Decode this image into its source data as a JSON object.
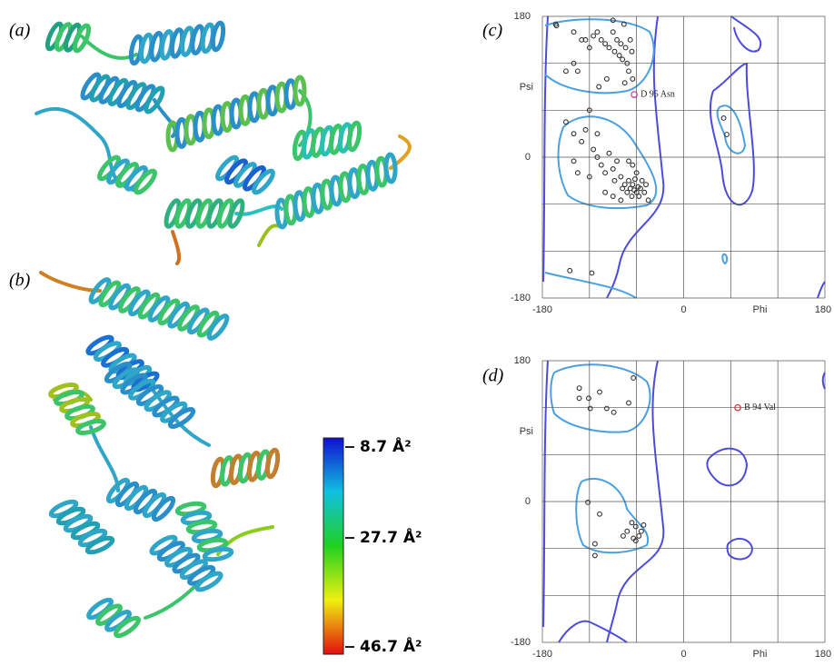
{
  "panel_labels": [
    "(a)",
    "(b)",
    "(c)",
    "(d)"
  ],
  "colorbar": {
    "labels": [
      "8.7 Å²",
      "27.7 Å²",
      "46.7 Å²"
    ]
  },
  "chart_data": [
    {
      "type": "scatter",
      "xlabel": "Phi",
      "ylabel": "Psi",
      "color": "#333333",
      "xlim": [
        -180,
        180
      ],
      "ylim": [
        -180,
        180
      ],
      "xticks": [
        -180,
        0,
        180
      ],
      "yticks": [
        -180,
        0,
        180
      ],
      "gridlines": [
        -120,
        -60,
        60,
        120
      ],
      "x": [
        -163,
        -162,
        -140,
        -130,
        -125,
        -120,
        -115,
        -110,
        -105,
        -100,
        -95,
        -90,
        -88,
        -85,
        -82,
        -80,
        -78,
        -76,
        -74,
        -72,
        -70,
        -68,
        -66,
        -65,
        -90,
        -150,
        -140,
        -135,
        -108,
        -98,
        -75,
        -120,
        -140,
        -130,
        -125,
        -115,
        -110,
        -105,
        -100,
        -95,
        -90,
        -88,
        -85,
        -80,
        -78,
        -75,
        -72,
        -70,
        -68,
        -66,
        -65,
        -63,
        -62,
        -60,
        -58,
        -57,
        -55,
        -53,
        -50,
        -48,
        -45,
        -60,
        -65,
        -70,
        -135,
        -140,
        -120,
        -100,
        -90,
        -80,
        -150,
        -110,
        -145,
        -117,
        51,
        55
      ],
      "values": [
        170,
        168,
        160,
        150,
        150,
        140,
        155,
        160,
        150,
        145,
        140,
        160,
        135,
        150,
        130,
        145,
        125,
        170,
        140,
        120,
        110,
        150,
        135,
        100,
        175,
        110,
        120,
        110,
        90,
        100,
        95,
        60,
        30,
        20,
        35,
        10,
        0,
        -10,
        -20,
        5,
        -15,
        -30,
        -5,
        -25,
        -40,
        -35,
        -45,
        -30,
        -40,
        -50,
        -35,
        -42,
        -28,
        -45,
        -38,
        -50,
        -40,
        -30,
        -45,
        -35,
        -55,
        -20,
        -10,
        -5,
        -20,
        -5,
        -25,
        -45,
        -50,
        -55,
        45,
        30,
        -145,
        -148,
        50,
        29
      ],
      "highlight": {
        "x": -63,
        "y": 80,
        "label": "D  95 Asn",
        "color": "#d0409a"
      }
    },
    {
      "type": "scatter",
      "xlabel": "Phi",
      "ylabel": "Psi",
      "color": "#333333",
      "xlim": [
        -180,
        180
      ],
      "ylim": [
        -180,
        180
      ],
      "xticks": [
        -180,
        0,
        180
      ],
      "yticks": [
        -180,
        0,
        180
      ],
      "gridlines": [
        -120,
        -60,
        60,
        120
      ],
      "x": [
        -133,
        -121,
        -119,
        -98,
        -89,
        -70,
        -64,
        -107,
        -133,
        -122,
        -107,
        -113,
        -61,
        -57,
        -54,
        -64,
        -72,
        -51,
        -113,
        -61,
        -77,
        -66
      ],
      "values": [
        145,
        132,
        119,
        119,
        114,
        126,
        158,
        140,
        132,
        -1,
        -16,
        -54,
        -32,
        -44,
        -38,
        -47,
        -38,
        -30,
        -69,
        -50,
        -44,
        -27
      ],
      "highlight": {
        "x": 69,
        "y": 120,
        "label": "B  94 Val",
        "color": "#e03030"
      }
    }
  ]
}
